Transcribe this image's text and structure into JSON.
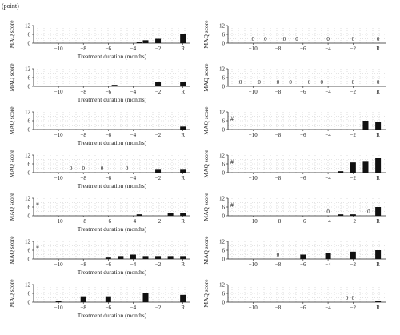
{
  "figure": {
    "unit_label": "(point)"
  },
  "chart_data": [
    {
      "type": "bar",
      "panel": 1,
      "ylabel": "MAQ score",
      "xlabel": "Treatment duration (months)",
      "ylim": [
        0,
        12
      ],
      "yticks": [
        0,
        6,
        12
      ],
      "x_ticks": [
        "−10",
        "−8",
        "−6",
        "−4",
        "−2",
        "R"
      ],
      "bars": [
        {
          "x": -3.5,
          "value": 1
        },
        {
          "x": -3,
          "value": 2
        },
        {
          "x": -2,
          "value": 3
        },
        {
          "x": 0,
          "value": 6
        }
      ],
      "zeros": [],
      "mark": ""
    },
    {
      "type": "bar",
      "panel": 2,
      "ylabel": "MAQ score",
      "xlabel": "",
      "ylim": [
        0,
        12
      ],
      "yticks": [
        0,
        6,
        12
      ],
      "x_ticks": [
        "−10",
        "−8",
        "−6",
        "−4",
        "−2",
        "R"
      ],
      "bars": [],
      "zeros": [
        {
          "x": -10,
          "label": "0"
        },
        {
          "x": -9,
          "label": "0"
        },
        {
          "x": -7.5,
          "label": "0"
        },
        {
          "x": -6.5,
          "label": "0"
        },
        {
          "x": -4,
          "label": "0"
        },
        {
          "x": -2,
          "label": "0"
        },
        {
          "x": 0,
          "label": "0"
        }
      ],
      "mark": ""
    },
    {
      "type": "bar",
      "panel": 3,
      "ylabel": "MAQ score",
      "xlabel": "Treatment duration (months)",
      "ylim": [
        0,
        12
      ],
      "yticks": [
        0,
        6,
        12
      ],
      "x_ticks": [
        "−10",
        "−8",
        "−6",
        "−4",
        "−2",
        "R"
      ],
      "bars": [
        {
          "x": -5.5,
          "value": 1
        },
        {
          "x": -2,
          "value": 3
        },
        {
          "x": 0,
          "value": 3
        }
      ],
      "zeros": [],
      "mark": ""
    },
    {
      "type": "bar",
      "panel": 4,
      "ylabel": "MAQ score",
      "xlabel": "",
      "ylim": [
        0,
        12
      ],
      "yticks": [
        0,
        6,
        12
      ],
      "x_ticks": [
        "−10",
        "−8",
        "−6",
        "−4",
        "−2",
        "R"
      ],
      "bars": [],
      "zeros": [
        {
          "x": -11,
          "label": "0"
        },
        {
          "x": -9.5,
          "label": "0"
        },
        {
          "x": -8,
          "label": "0"
        },
        {
          "x": -7,
          "label": "0"
        },
        {
          "x": -5.5,
          "label": "0"
        },
        {
          "x": -4.5,
          "label": "0"
        },
        {
          "x": -2,
          "label": "0"
        },
        {
          "x": 0,
          "label": "0"
        }
      ],
      "mark": ""
    },
    {
      "type": "bar",
      "panel": 5,
      "ylabel": "MAQ score",
      "xlabel": "Treatment duration (months)",
      "ylim": [
        0,
        12
      ],
      "yticks": [
        0,
        6,
        12
      ],
      "x_ticks": [
        "−10",
        "−8",
        "−6",
        "−4",
        "−2",
        "R"
      ],
      "bars": [
        {
          "x": 0,
          "value": 2
        }
      ],
      "zeros": [],
      "mark": ""
    },
    {
      "type": "bar",
      "panel": 6,
      "ylabel": "MAQ score",
      "xlabel": "",
      "ylim": [
        0,
        12
      ],
      "yticks": [
        0,
        6,
        12
      ],
      "x_ticks": [
        "−10",
        "−8",
        "−6",
        "−4",
        "−2",
        "R"
      ],
      "bars": [
        {
          "x": -1,
          "value": 6
        },
        {
          "x": 0,
          "value": 5
        }
      ],
      "zeros": [],
      "mark": "#"
    },
    {
      "type": "bar",
      "panel": 7,
      "ylabel": "MAQ score",
      "xlabel": "Treatment duration (months)",
      "ylim": [
        0,
        12
      ],
      "yticks": [
        0,
        6,
        12
      ],
      "x_ticks": [
        "−10",
        "−8",
        "−6",
        "−4",
        "−2",
        "R"
      ],
      "bars": [
        {
          "x": -2,
          "value": 2
        },
        {
          "x": 0,
          "value": 2
        }
      ],
      "zeros": [
        {
          "x": -9,
          "label": "0"
        },
        {
          "x": -8,
          "label": "0"
        },
        {
          "x": -6.5,
          "label": "0"
        },
        {
          "x": -4.5,
          "label": "0"
        }
      ],
      "mark": ""
    },
    {
      "type": "bar",
      "panel": 8,
      "ylabel": "MAQ score",
      "xlabel": "",
      "ylim": [
        0,
        12
      ],
      "yticks": [
        0,
        6,
        12
      ],
      "x_ticks": [
        "−10",
        "−8",
        "−6",
        "−4",
        "−2",
        "R"
      ],
      "bars": [
        {
          "x": -3,
          "value": 1
        },
        {
          "x": -2,
          "value": 7
        },
        {
          "x": -1,
          "value": 8
        },
        {
          "x": 0,
          "value": 10
        }
      ],
      "zeros": [],
      "mark": "#"
    },
    {
      "type": "bar",
      "panel": 9,
      "ylabel": "MAQ score",
      "xlabel": "Treatment duration (months)",
      "ylim": [
        0,
        12
      ],
      "yticks": [
        0,
        6,
        12
      ],
      "x_ticks": [
        "−10",
        "−8",
        "−6",
        "−4",
        "−2",
        "R"
      ],
      "bars": [
        {
          "x": -3.5,
          "value": 1
        },
        {
          "x": -1,
          "value": 2
        },
        {
          "x": 0,
          "value": 2
        }
      ],
      "zeros": [],
      "mark": "*"
    },
    {
      "type": "bar",
      "panel": 10,
      "ylabel": "MAQ score",
      "xlabel": "",
      "ylim": [
        0,
        12
      ],
      "yticks": [
        0,
        6,
        12
      ],
      "x_ticks": [
        "−10",
        "−8",
        "−6",
        "−4",
        "−2",
        "R"
      ],
      "bars": [
        {
          "x": -3,
          "value": 1
        },
        {
          "x": -2,
          "value": 1
        },
        {
          "x": 0,
          "value": 6
        }
      ],
      "zeros": [
        {
          "x": -4,
          "label": "0"
        },
        {
          "x": -0.75,
          "label": "0"
        }
      ],
      "mark": "#"
    },
    {
      "type": "bar",
      "panel": 11,
      "ylabel": "MAQ score",
      "xlabel": "Treatment duration (months)",
      "ylim": [
        0,
        12
      ],
      "yticks": [
        0,
        6,
        12
      ],
      "x_ticks": [
        "−10",
        "−8",
        "−6",
        "−4",
        "−2",
        "R"
      ],
      "bars": [
        {
          "x": -6,
          "value": 1
        },
        {
          "x": -5,
          "value": 2
        },
        {
          "x": -4,
          "value": 3
        },
        {
          "x": -3,
          "value": 2
        },
        {
          "x": -2,
          "value": 2
        },
        {
          "x": -1,
          "value": 2
        },
        {
          "x": 0,
          "value": 2
        }
      ],
      "zeros": [],
      "mark": "*"
    },
    {
      "type": "bar",
      "panel": 12,
      "ylabel": "MAQ score",
      "xlabel": "",
      "ylim": [
        0,
        12
      ],
      "yticks": [
        0,
        6,
        12
      ],
      "x_ticks": [
        "−10",
        "−8",
        "−6",
        "−4",
        "−2",
        "R"
      ],
      "bars": [
        {
          "x": -6,
          "value": 3
        },
        {
          "x": -4,
          "value": 4
        },
        {
          "x": -2,
          "value": 5
        },
        {
          "x": 0,
          "value": 6
        }
      ],
      "zeros": [
        {
          "x": -8,
          "label": "0"
        }
      ],
      "mark": ""
    },
    {
      "type": "bar",
      "panel": 13,
      "ylabel": "MAQ score",
      "xlabel": "Treatment duration (months)",
      "ylim": [
        0,
        12
      ],
      "yticks": [
        0,
        6,
        12
      ],
      "x_ticks": [
        "−10",
        "−8",
        "−6",
        "−4",
        "−2",
        "R"
      ],
      "bars": [
        {
          "x": -10,
          "value": 1
        },
        {
          "x": -8,
          "value": 4
        },
        {
          "x": -6,
          "value": 4
        },
        {
          "x": -3,
          "value": 6
        },
        {
          "x": 0,
          "value": 5
        }
      ],
      "zeros": [],
      "mark": ""
    },
    {
      "type": "bar",
      "panel": 14,
      "ylabel": "MAQ score",
      "xlabel": "",
      "ylim": [
        0,
        12
      ],
      "yticks": [
        0,
        6,
        12
      ],
      "x_ticks": [
        "−10",
        "−8",
        "−6",
        "−4",
        "−2",
        "R"
      ],
      "bars": [
        {
          "x": 0,
          "value": 1
        }
      ],
      "zeros": [
        {
          "x": -2.5,
          "label": "0"
        },
        {
          "x": -2,
          "label": "0"
        }
      ],
      "mark": ""
    }
  ]
}
